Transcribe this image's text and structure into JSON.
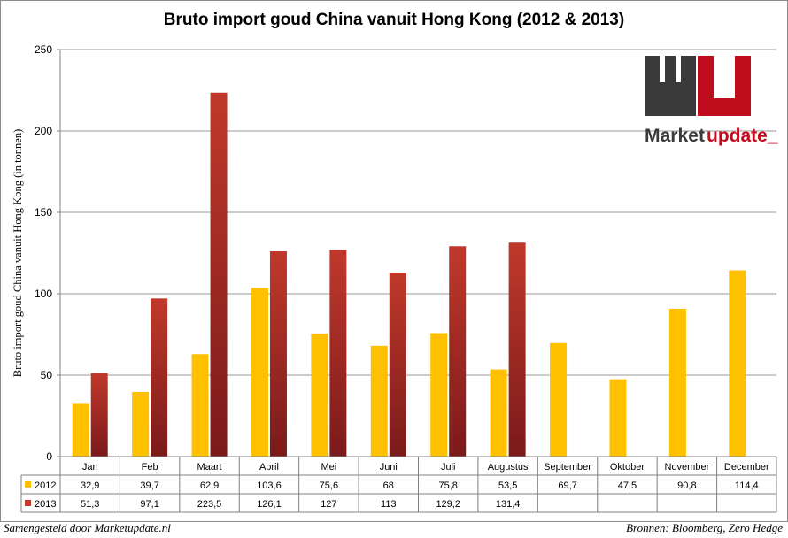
{
  "footer": {
    "left": "Samengesteld door Marketupdate.nl",
    "right": "Bronnen: Bloomberg, Zero Hedge"
  },
  "logo": {
    "letters": "MU",
    "word_dark": "Market",
    "word_red": "update_",
    "colors": {
      "dark": "#3a3a3a",
      "red": "#c00d1e"
    }
  },
  "colors": {
    "series_2012": "#ffc000",
    "series_2013_top": "#c0392b",
    "series_2013_bottom": "#7a1a1a",
    "grid": "#9a9a9a"
  },
  "chart_data": {
    "type": "bar",
    "title": "Bruto import goud China vanuit Hong Kong (2012 & 2013)",
    "ylabel": "Bruto import goud China vanuit Hong Kong (in tonnen)",
    "xlabel": "",
    "ylim": [
      0,
      250
    ],
    "yticks": [
      0,
      50,
      100,
      150,
      200,
      250
    ],
    "grid": true,
    "legend": "data-table",
    "categories": [
      "Jan",
      "Feb",
      "Maart",
      "April",
      "Mei",
      "Juni",
      "Juli",
      "Augustus",
      "September",
      "Oktober",
      "November",
      "December"
    ],
    "series": [
      {
        "name": "2012",
        "values": [
          32.9,
          39.7,
          62.9,
          103.6,
          75.6,
          68,
          75.8,
          53.5,
          69.7,
          47.5,
          90.8,
          114.4
        ],
        "labels": [
          "32,9",
          "39,7",
          "62,9",
          "103,6",
          "75,6",
          "68",
          "75,8",
          "53,5",
          "69,7",
          "47,5",
          "90,8",
          "114,4"
        ]
      },
      {
        "name": "2013",
        "values": [
          51.3,
          97.1,
          223.5,
          126.1,
          127,
          113,
          129.2,
          131.4,
          null,
          null,
          null,
          null
        ],
        "labels": [
          "51,3",
          "97,1",
          "223,5",
          "126,1",
          "127",
          "113",
          "129,2",
          "131,4",
          "",
          "",
          "",
          ""
        ]
      }
    ]
  }
}
